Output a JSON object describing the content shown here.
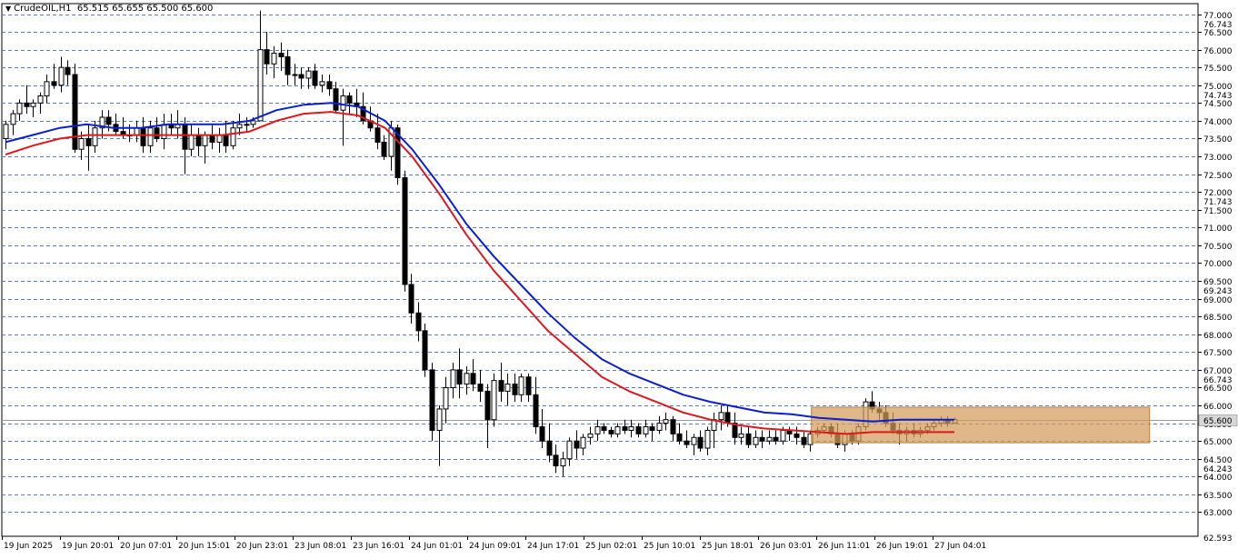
{
  "header": {
    "symbol_timeframe": "CrudeOIL,H1",
    "ohlc": "65.515 65.655 65.500 65.600",
    "arrow_icon": "triangle-down-icon"
  },
  "colors": {
    "background": "#ffffff",
    "grid": "#5b7dbf",
    "ma_fast": "#0a1ed2",
    "ma_slow": "#e0181d",
    "box": "#d29b5a",
    "candle": "#000000",
    "price_tag_bg": "#d7d7d7",
    "axis_text": "#000000"
  },
  "chart_data": {
    "type": "candlestick",
    "grid": true,
    "price_axis": {
      "position": "right",
      "ylim": [
        62.593,
        77.2
      ],
      "ticks": [
        "77.000",
        "76.500",
        "76.000",
        "75.500",
        "75.000",
        "74.500",
        "74.000",
        "73.500",
        "73.000",
        "72.500",
        "72.000",
        "71.500",
        "71.000",
        "70.500",
        "70.000",
        "69.500",
        "69.000",
        "68.500",
        "68.000",
        "67.500",
        "67.000",
        "66.500",
        "66.000",
        "65.500",
        "65.000",
        "64.500",
        "64.000",
        "63.500",
        "63.000"
      ],
      "bottom_label": "62.593",
      "highlighted_levels": [
        "76.743",
        "74.743",
        "71.743",
        "69.243",
        "66.743",
        "64.243"
      ],
      "current_price": "65.600"
    },
    "time_axis": {
      "labels": [
        "19 Jun 2025",
        "19 Jun 20:01",
        "20 Jun 07:01",
        "20 Jun 15:01",
        "20 Jun 23:01",
        "23 Jun 08:01",
        "23 Jun 16:01",
        "24 Jun 01:01",
        "24 Jun 09:01",
        "24 Jun 17:01",
        "25 Jun 02:01",
        "25 Jun 10:01",
        "25 Jun 18:01",
        "26 Jun 03:01",
        "26 Jun 11:01",
        "26 Jun 19:01",
        "27 Jun 04:01"
      ]
    },
    "series": [
      {
        "key": "price",
        "candles_ohlc": [
          [
            73.5,
            74.0,
            73.2,
            73.9
          ],
          [
            73.9,
            74.3,
            73.6,
            74.2
          ],
          [
            74.2,
            74.6,
            74.0,
            74.5
          ],
          [
            74.5,
            75.0,
            74.2,
            74.4
          ],
          [
            74.4,
            74.6,
            74.1,
            74.5
          ],
          [
            74.5,
            74.8,
            74.2,
            74.7
          ],
          [
            74.7,
            75.3,
            74.5,
            75.1
          ],
          [
            75.1,
            75.6,
            74.9,
            75.0
          ],
          [
            75.0,
            75.8,
            74.8,
            75.5
          ],
          [
            75.5,
            75.7,
            75.0,
            75.3
          ],
          [
            75.3,
            75.6,
            73.1,
            73.2
          ],
          [
            73.2,
            73.7,
            72.9,
            73.5
          ],
          [
            73.5,
            73.9,
            72.6,
            73.3
          ],
          [
            73.3,
            74.0,
            73.1,
            73.8
          ],
          [
            73.8,
            74.3,
            73.5,
            74.1
          ],
          [
            74.1,
            74.3,
            73.7,
            73.9
          ],
          [
            73.9,
            74.2,
            73.6,
            73.7
          ],
          [
            73.7,
            74.1,
            73.5,
            73.6
          ],
          [
            73.6,
            73.9,
            73.4,
            73.6
          ],
          [
            73.6,
            74.0,
            73.4,
            73.8
          ],
          [
            73.8,
            74.1,
            73.1,
            73.3
          ],
          [
            73.3,
            74.0,
            73.1,
            73.8
          ],
          [
            73.8,
            74.1,
            73.4,
            73.5
          ],
          [
            73.5,
            74.2,
            73.2,
            73.9
          ],
          [
            73.9,
            74.2,
            73.6,
            73.8
          ],
          [
            73.8,
            74.3,
            73.5,
            73.9
          ],
          [
            73.9,
            74.1,
            72.5,
            73.2
          ],
          [
            73.2,
            73.9,
            73.0,
            73.6
          ],
          [
            73.6,
            73.8,
            73.0,
            73.3
          ],
          [
            73.3,
            73.7,
            72.8,
            73.6
          ],
          [
            73.6,
            73.9,
            73.2,
            73.4
          ],
          [
            73.4,
            73.8,
            73.1,
            73.6
          ],
          [
            73.6,
            74.0,
            73.1,
            73.3
          ],
          [
            73.3,
            74.0,
            73.2,
            73.8
          ],
          [
            73.8,
            74.2,
            73.6,
            73.9
          ],
          [
            73.9,
            74.1,
            73.7,
            73.9
          ],
          [
            73.9,
            74.1,
            73.8,
            74.0
          ],
          [
            74.0,
            77.1,
            74.0,
            76.0
          ],
          [
            76.0,
            76.5,
            75.3,
            75.6
          ],
          [
            75.6,
            76.1,
            75.2,
            75.9
          ],
          [
            75.9,
            76.2,
            75.4,
            75.8
          ],
          [
            75.8,
            76.0,
            75.0,
            75.3
          ],
          [
            75.3,
            75.6,
            75.0,
            75.3
          ],
          [
            75.3,
            75.5,
            74.9,
            75.2
          ],
          [
            75.2,
            75.5,
            74.9,
            75.4
          ],
          [
            75.4,
            75.6,
            74.9,
            75.0
          ],
          [
            75.0,
            75.3,
            74.8,
            75.1
          ],
          [
            75.1,
            75.3,
            74.7,
            74.9
          ],
          [
            74.9,
            75.1,
            74.2,
            74.3
          ],
          [
            74.3,
            74.9,
            73.3,
            74.7
          ],
          [
            74.7,
            74.8,
            74.2,
            74.5
          ],
          [
            74.5,
            74.9,
            74.1,
            74.4
          ],
          [
            74.4,
            74.8,
            73.9,
            74.0
          ],
          [
            74.0,
            74.4,
            73.7,
            73.8
          ],
          [
            73.8,
            74.2,
            73.2,
            73.4
          ],
          [
            73.4,
            73.6,
            72.9,
            73.0
          ],
          [
            73.0,
            74.0,
            72.6,
            73.8
          ],
          [
            73.8,
            73.9,
            72.2,
            72.4
          ],
          [
            72.4,
            72.6,
            69.2,
            69.4
          ],
          [
            69.4,
            69.7,
            68.3,
            68.6
          ],
          [
            68.6,
            68.9,
            67.8,
            68.1
          ],
          [
            68.1,
            68.3,
            66.8,
            67.0
          ],
          [
            67.0,
            67.2,
            65.0,
            65.3
          ],
          [
            65.3,
            66.0,
            64.3,
            65.9
          ],
          [
            65.9,
            66.8,
            65.5,
            66.5
          ],
          [
            66.5,
            67.2,
            66.2,
            67.0
          ],
          [
            67.0,
            67.6,
            66.2,
            66.6
          ],
          [
            66.6,
            67.1,
            66.3,
            66.9
          ],
          [
            66.9,
            67.3,
            66.4,
            66.6
          ],
          [
            66.6,
            67.0,
            66.1,
            66.4
          ],
          [
            66.4,
            66.6,
            64.8,
            65.6
          ],
          [
            65.6,
            66.9,
            65.4,
            66.7
          ],
          [
            66.7,
            67.2,
            66.1,
            66.4
          ],
          [
            66.4,
            66.9,
            66.0,
            66.6
          ],
          [
            66.6,
            66.9,
            66.1,
            66.3
          ],
          [
            66.3,
            66.9,
            66.1,
            66.8
          ],
          [
            66.8,
            66.9,
            66.1,
            66.3
          ],
          [
            66.3,
            66.8,
            65.2,
            65.4
          ],
          [
            65.4,
            65.9,
            64.8,
            65.0
          ],
          [
            65.0,
            65.5,
            64.4,
            64.6
          ],
          [
            64.6,
            64.9,
            64.1,
            64.3
          ],
          [
            64.3,
            64.7,
            64.0,
            64.5
          ],
          [
            64.5,
            65.1,
            64.3,
            65.0
          ],
          [
            65.0,
            65.3,
            64.5,
            64.8
          ],
          [
            64.8,
            65.2,
            64.6,
            65.1
          ],
          [
            65.1,
            65.4,
            64.9,
            65.2
          ],
          [
            65.2,
            65.6,
            65.0,
            65.4
          ],
          [
            65.4,
            65.5,
            65.2,
            65.3
          ],
          [
            65.3,
            65.4,
            65.1,
            65.2
          ],
          [
            65.2,
            65.5,
            65.1,
            65.4
          ],
          [
            65.4,
            65.6,
            65.2,
            65.3
          ],
          [
            65.3,
            65.6,
            65.1,
            65.4
          ],
          [
            65.4,
            65.5,
            65.1,
            65.2
          ],
          [
            65.2,
            65.6,
            65.1,
            65.4
          ],
          [
            65.4,
            65.5,
            65.0,
            65.3
          ],
          [
            65.3,
            65.7,
            65.2,
            65.5
          ],
          [
            65.5,
            65.8,
            65.3,
            65.6
          ],
          [
            65.6,
            65.7,
            65.0,
            65.2
          ],
          [
            65.2,
            65.5,
            64.9,
            65.0
          ],
          [
            65.0,
            65.3,
            64.8,
            64.9
          ],
          [
            64.9,
            65.2,
            64.6,
            65.1
          ],
          [
            65.1,
            65.3,
            64.7,
            64.8
          ],
          [
            64.8,
            65.4,
            64.6,
            65.3
          ],
          [
            65.3,
            65.8,
            64.8,
            65.6
          ],
          [
            65.6,
            66.0,
            65.3,
            65.8
          ],
          [
            65.8,
            66.0,
            65.4,
            65.5
          ],
          [
            65.5,
            65.8,
            64.9,
            65.1
          ],
          [
            65.1,
            65.4,
            64.9,
            65.2
          ],
          [
            65.2,
            65.4,
            64.8,
            64.9
          ],
          [
            64.9,
            65.3,
            64.8,
            65.1
          ],
          [
            65.1,
            65.3,
            64.8,
            65.0
          ],
          [
            65.0,
            65.3,
            64.9,
            65.1
          ],
          [
            65.1,
            65.3,
            64.9,
            65.0
          ],
          [
            65.0,
            65.4,
            64.9,
            65.3
          ],
          [
            65.3,
            65.4,
            65.0,
            65.2
          ],
          [
            65.2,
            65.4,
            64.9,
            65.1
          ],
          [
            65.1,
            65.3,
            64.8,
            64.9
          ],
          [
            64.9,
            65.3,
            64.7,
            65.2
          ],
          [
            65.2,
            65.4,
            65.1,
            65.3
          ],
          [
            65.3,
            65.5,
            65.2,
            65.4
          ],
          [
            65.4,
            65.5,
            65.1,
            65.2
          ],
          [
            65.2,
            65.5,
            64.8,
            64.9
          ],
          [
            64.9,
            65.3,
            64.7,
            65.2
          ],
          [
            65.2,
            65.3,
            64.9,
            65.0
          ],
          [
            65.0,
            65.5,
            64.9,
            65.4
          ],
          [
            65.4,
            66.2,
            65.3,
            66.1
          ],
          [
            66.1,
            66.4,
            65.8,
            65.9
          ],
          [
            65.9,
            66.1,
            65.6,
            65.8
          ],
          [
            65.8,
            66.0,
            65.4,
            65.5
          ],
          [
            65.5,
            65.8,
            65.2,
            65.3
          ],
          [
            65.3,
            65.5,
            64.9,
            65.2
          ],
          [
            65.2,
            65.4,
            65.0,
            65.3
          ],
          [
            65.3,
            65.5,
            65.1,
            65.2
          ],
          [
            65.2,
            65.4,
            65.1,
            65.3
          ],
          [
            65.3,
            65.5,
            65.2,
            65.4
          ],
          [
            65.4,
            65.6,
            65.3,
            65.5
          ],
          [
            65.5,
            65.7,
            65.4,
            65.6
          ],
          [
            65.6,
            65.7,
            65.4,
            65.5
          ],
          [
            65.5,
            65.66,
            65.5,
            65.6
          ]
        ]
      },
      {
        "key": "ma_fast",
        "values": [
          73.4,
          73.6,
          73.8,
          73.9,
          73.8,
          73.8,
          73.9,
          73.9,
          73.9,
          74.0,
          74.3,
          74.45,
          74.5,
          74.4,
          74.0,
          73.2,
          72.2,
          71.1,
          70.2,
          69.4,
          68.6,
          67.9,
          67.3,
          66.9,
          66.6,
          66.3,
          66.1,
          65.95,
          65.8,
          65.75,
          65.65,
          65.6,
          65.55,
          65.6,
          65.6,
          65.6
        ]
      },
      {
        "key": "ma_slow",
        "values": [
          73.05,
          73.3,
          73.5,
          73.6,
          73.6,
          73.6,
          73.6,
          73.6,
          73.6,
          73.7,
          74.0,
          74.2,
          74.25,
          74.15,
          73.8,
          73.0,
          71.95,
          70.8,
          69.8,
          68.95,
          68.1,
          67.45,
          66.8,
          66.4,
          66.1,
          65.8,
          65.6,
          65.45,
          65.35,
          65.3,
          65.25,
          65.2,
          65.25,
          65.25,
          65.25,
          65.25
        ]
      }
    ],
    "zone": {
      "x_from_candle": 118,
      "x_to_candle": 164,
      "y_from": 64.95,
      "y_to": 65.95
    }
  }
}
